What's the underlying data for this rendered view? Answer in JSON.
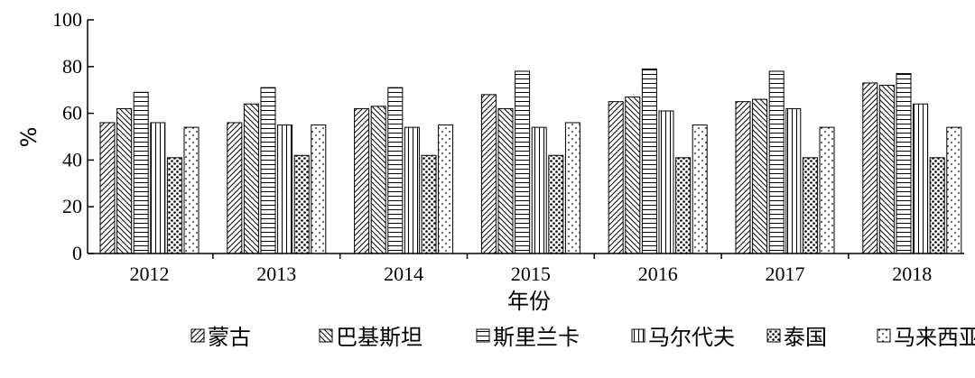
{
  "chart_data": {
    "type": "bar",
    "categories": [
      "2012",
      "2013",
      "2014",
      "2015",
      "2016",
      "2017",
      "2018"
    ],
    "xlabel": "年份",
    "ylabel": "%",
    "ylim": [
      0,
      100
    ],
    "yticks": [
      "0",
      "20",
      "40",
      "60",
      "80",
      "100"
    ],
    "grid": false,
    "legend_position": "bottom",
    "series": [
      {
        "name": "蒙古",
        "pattern": "diagonal-up",
        "values": [
          56,
          56,
          62,
          68,
          65,
          65,
          73
        ]
      },
      {
        "name": "巴基斯坦",
        "pattern": "diagonal-down",
        "values": [
          62,
          64,
          63,
          62,
          67,
          66,
          72
        ]
      },
      {
        "name": "斯里兰卡",
        "pattern": "horizontal",
        "values": [
          69,
          71,
          71,
          78,
          79,
          78,
          77
        ]
      },
      {
        "name": "马尔代夫",
        "pattern": "vertical",
        "values": [
          56,
          55,
          54,
          54,
          61,
          62,
          64
        ]
      },
      {
        "name": "泰国",
        "pattern": "dots-dense",
        "values": [
          41,
          42,
          42,
          42,
          41,
          41,
          41
        ]
      },
      {
        "name": "马来西亚",
        "pattern": "dots-sparse",
        "values": [
          54,
          55,
          55,
          56,
          55,
          54,
          54
        ]
      }
    ]
  }
}
